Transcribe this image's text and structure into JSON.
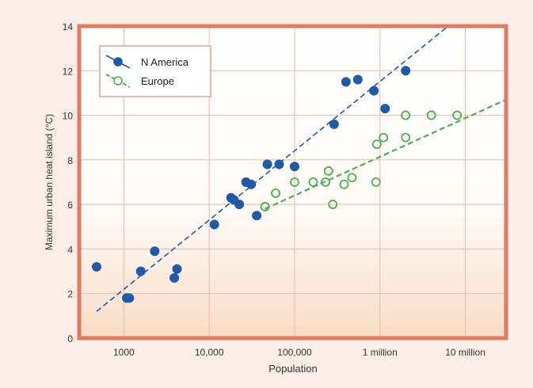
{
  "chart_data": {
    "type": "scatter",
    "xlabel": "Population",
    "ylabel": "Maximum urban heat island (°C)",
    "x_scale": "log",
    "xlim": [
      300,
      30000000
    ],
    "ylim": [
      0,
      14
    ],
    "grid": true,
    "legend_position": "top-left",
    "x_ticks": [
      {
        "value": 1000,
        "label": "1000"
      },
      {
        "value": 10000,
        "label": "10,000"
      },
      {
        "value": 100000,
        "label": "100,000"
      },
      {
        "value": 1000000,
        "label": "1 million"
      },
      {
        "value": 10000000,
        "label": "10 million"
      }
    ],
    "y_ticks": [
      {
        "value": 0,
        "label": "0"
      },
      {
        "value": 2,
        "label": "2"
      },
      {
        "value": 4,
        "label": "4"
      },
      {
        "value": 6,
        "label": "6"
      },
      {
        "value": 8,
        "label": "8"
      },
      {
        "value": 10,
        "label": "10"
      },
      {
        "value": 12,
        "label": "12"
      },
      {
        "value": 14,
        "label": "14"
      }
    ],
    "series": [
      {
        "name": "N America",
        "color": "#1e5aa8",
        "marker": "filled-circle",
        "points": [
          [
            480,
            3.2
          ],
          [
            1080,
            1.8
          ],
          [
            1160,
            1.8
          ],
          [
            1580,
            3.0
          ],
          [
            2300,
            3.9
          ],
          [
            3900,
            2.7
          ],
          [
            4200,
            3.1
          ],
          [
            11500,
            5.1
          ],
          [
            18000,
            6.3
          ],
          [
            19500,
            6.2
          ],
          [
            22500,
            6.0
          ],
          [
            27000,
            7.0
          ],
          [
            31000,
            6.9
          ],
          [
            36000,
            5.5
          ],
          [
            48000,
            7.8
          ],
          [
            66000,
            7.8
          ],
          [
            100000,
            7.7
          ],
          [
            290000,
            9.6
          ],
          [
            400000,
            11.5
          ],
          [
            550000,
            11.6
          ],
          [
            850000,
            11.1
          ],
          [
            1150000,
            10.3
          ],
          [
            2000000,
            12.0
          ]
        ],
        "fit_line": [
          [
            480,
            1.2
          ],
          [
            6300000,
            14.0
          ]
        ]
      },
      {
        "name": "Europe",
        "color": "#4caf50",
        "marker": "open-circle",
        "points": [
          [
            45000,
            5.9
          ],
          [
            60000,
            6.5
          ],
          [
            100000,
            7.0
          ],
          [
            165000,
            7.0
          ],
          [
            230000,
            7.0
          ],
          [
            250000,
            7.5
          ],
          [
            280000,
            6.0
          ],
          [
            380000,
            6.9
          ],
          [
            470000,
            7.2
          ],
          [
            900000,
            7.0
          ],
          [
            920000,
            8.7
          ],
          [
            1100000,
            9.0
          ],
          [
            2000000,
            9.0
          ],
          [
            2000000,
            10.0
          ],
          [
            4000000,
            10.0
          ],
          [
            8000000,
            10.0
          ]
        ],
        "fit_line": [
          [
            45000,
            5.8
          ],
          [
            30000000,
            10.7
          ]
        ]
      }
    ]
  }
}
